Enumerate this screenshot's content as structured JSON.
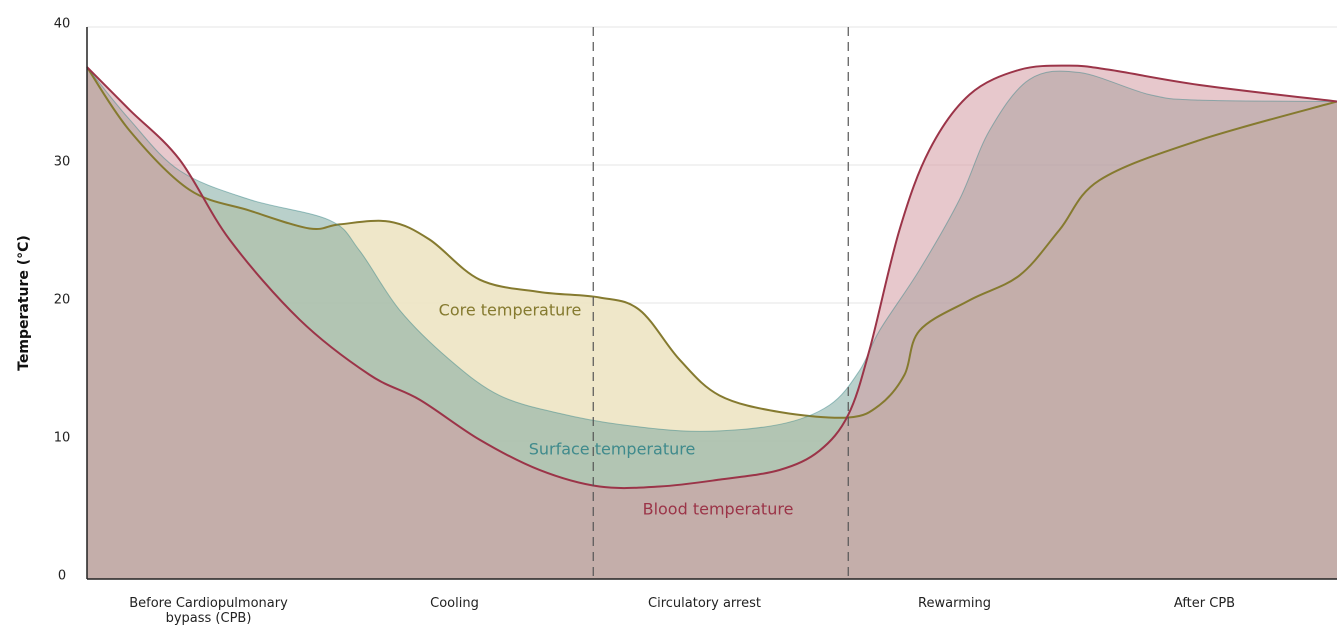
{
  "chart_data": {
    "type": "area",
    "ylabel": "Temperature (°C)",
    "categories": [
      "Before Cardiopulmonary bypass (CPB)",
      "Cooling",
      "Circulatory arrest",
      "Rewarming",
      "After CPB"
    ],
    "xlim": [
      0,
      100
    ],
    "ylim": [
      0,
      40
    ],
    "yticks": [
      0,
      10,
      20,
      30,
      40
    ],
    "grid": true,
    "phase_boundaries": [
      40.5,
      60.9
    ],
    "series": [
      {
        "name": "Core temperature",
        "color": "#857a2f",
        "fill": "#ece3c0",
        "x": [
          0,
          3.4,
          8.2,
          13.0,
          17.8,
          20.2,
          24.2,
          27.4,
          31.4,
          36.2,
          41.0,
          44.2,
          47.4,
          50.6,
          55.4,
          60.9,
          63.4,
          65.4,
          66.6,
          70.6,
          74.6,
          77.8,
          81.0,
          89.0,
          100
        ],
        "values": [
          37.1,
          32.5,
          28.2,
          26.7,
          25.4,
          25.7,
          25.9,
          24.6,
          21.7,
          20.8,
          20.4,
          19.5,
          15.9,
          13.3,
          12.1,
          11.7,
          12.6,
          14.8,
          18,
          20.2,
          22,
          25.3,
          28.9,
          31.8,
          34.6
        ]
      },
      {
        "name": "Surface temperature",
        "color": "#3f8a8c",
        "fill": "#7fa9a0",
        "x": [
          0,
          3.4,
          7.4,
          13.0,
          19.4,
          21.8,
          25.0,
          29.0,
          33.0,
          37.8,
          42.6,
          49.0,
          55.4,
          59.4,
          61.8,
          63.4,
          66.6,
          69.8,
          72.2,
          75.4,
          79.4,
          85.0,
          89.0,
          100
        ],
        "values": [
          37.1,
          33.3,
          29.6,
          27.5,
          26,
          23.8,
          19.5,
          15.9,
          13.3,
          12,
          11.2,
          10.7,
          11.2,
          12.6,
          15.1,
          18,
          22.4,
          27.5,
          32.5,
          36.2,
          36.7,
          35.1,
          34.7,
          34.6
        ]
      },
      {
        "name": "Blood temperature",
        "color": "#9b3448",
        "fill": "#d49aa3",
        "x": [
          0,
          3.4,
          7.4,
          11.4,
          17.0,
          22.6,
          26.6,
          31.4,
          36.2,
          41.0,
          45.8,
          50.6,
          55.4,
          58.6,
          60.9,
          62.6,
          65.0,
          67.4,
          70.6,
          74.6,
          78.6,
          81.8,
          89.0,
          100
        ],
        "values": [
          37.1,
          34,
          30.4,
          24.6,
          18.8,
          14.8,
          13,
          10.1,
          7.9,
          6.7,
          6.7,
          7.2,
          7.9,
          9.3,
          11.9,
          16.6,
          25.3,
          31.1,
          35.1,
          36.9,
          37.2,
          36.9,
          35.8,
          34.6
        ]
      }
    ]
  }
}
